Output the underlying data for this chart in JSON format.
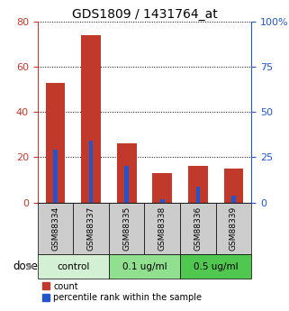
{
  "title": "GDS1809 / 1431764_at",
  "samples": [
    "GSM88334",
    "GSM88337",
    "GSM88335",
    "GSM88338",
    "GSM88336",
    "GSM88339"
  ],
  "count_values": [
    53,
    74,
    26,
    13,
    16,
    15
  ],
  "percentile_values": [
    29,
    34,
    20,
    2,
    9,
    4
  ],
  "groups": [
    {
      "label": "control",
      "start": 0,
      "end": 2,
      "color": "#d4f0d4"
    },
    {
      "label": "0.1 ug/ml",
      "start": 2,
      "end": 4,
      "color": "#90e090"
    },
    {
      "label": "0.5 ug/ml",
      "start": 4,
      "end": 6,
      "color": "#50c850"
    }
  ],
  "ylim_left": [
    0,
    80
  ],
  "ylim_right": [
    0,
    100
  ],
  "yticks_left": [
    0,
    20,
    40,
    60,
    80
  ],
  "yticks_right": [
    0,
    25,
    50,
    75,
    100
  ],
  "bar_color_count": "#c0392b",
  "bar_color_percentile": "#2255cc",
  "sample_box_color": "#cccccc",
  "dose_label": "dose",
  "legend_count": "count",
  "legend_percentile": "percentile rank within the sample",
  "left_tick_color": "#c0392b",
  "right_tick_color": "#2255cc"
}
